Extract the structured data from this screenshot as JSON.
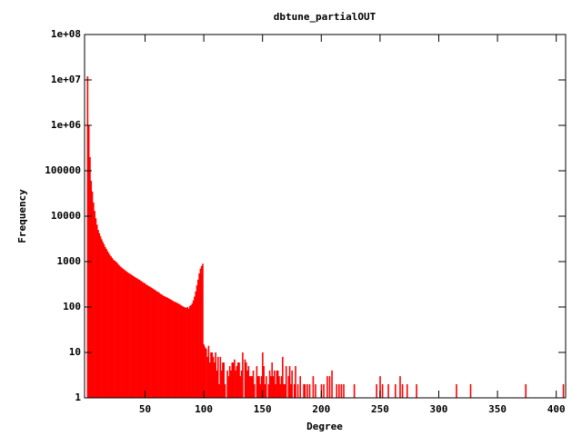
{
  "chart_data": {
    "type": "bar",
    "title": "dbtune_partialOUT",
    "x_label": "Degree",
    "y_label": "Frequency",
    "log_y": true,
    "color": "#ff0000",
    "xlim": [
      -1.5,
      408
    ],
    "xticks": [
      50,
      100,
      150,
      200,
      250,
      300,
      350,
      400
    ],
    "ylim": [
      1,
      100000000
    ],
    "yticks": [
      1,
      10,
      100,
      1000,
      10000,
      100000,
      {
        "value": 1000000,
        "label": "1e+06"
      },
      {
        "value": 10000000,
        "label": "1e+07"
      },
      {
        "value": 100000000,
        "label": "1e+08"
      }
    ],
    "x": [
      1,
      2,
      3,
      4,
      5,
      6,
      7,
      8,
      9,
      10,
      11,
      12,
      13,
      14,
      15,
      16,
      17,
      18,
      19,
      20,
      21,
      22,
      23,
      24,
      25,
      26,
      27,
      28,
      29,
      30,
      31,
      32,
      33,
      34,
      35,
      36,
      37,
      38,
      39,
      40,
      41,
      42,
      43,
      44,
      45,
      46,
      47,
      48,
      49,
      50,
      51,
      52,
      53,
      54,
      55,
      56,
      57,
      58,
      59,
      60,
      61,
      62,
      63,
      64,
      65,
      66,
      67,
      68,
      69,
      70,
      71,
      72,
      73,
      74,
      75,
      76,
      77,
      78,
      79,
      80,
      81,
      82,
      83,
      84,
      85,
      86,
      87,
      88,
      89,
      90,
      91,
      92,
      93,
      94,
      95,
      96,
      97,
      98,
      99,
      100,
      101,
      102,
      103,
      104,
      105,
      106,
      107,
      108,
      109,
      110,
      111,
      112,
      113,
      114,
      115,
      116,
      117,
      118,
      120,
      121,
      122,
      123,
      124,
      125,
      126,
      127,
      128,
      129,
      130,
      131,
      132,
      133,
      135,
      136,
      137,
      138,
      139,
      140,
      141,
      142,
      143,
      145,
      146,
      147,
      148,
      149,
      150,
      151,
      152,
      153,
      155,
      156,
      157,
      158,
      159,
      160,
      161,
      162,
      163,
      164,
      165,
      166,
      167,
      168,
      169,
      170,
      172,
      173,
      174,
      175,
      177,
      178,
      180,
      182,
      185,
      186,
      188,
      190,
      193,
      195,
      200,
      202,
      205,
      207,
      209,
      213,
      215,
      217,
      219,
      228,
      247,
      250,
      252,
      257,
      263,
      267,
      269,
      273,
      281,
      315,
      327,
      374,
      406
    ],
    "values": [
      12000000,
      1000000,
      200000,
      60000,
      35000,
      20000,
      13000,
      9000,
      6500,
      5000,
      4200,
      3600,
      3100,
      2700,
      2400,
      2100,
      1900,
      1700,
      1550,
      1400,
      1300,
      1200,
      1100,
      1050,
      1000,
      950,
      880,
      820,
      780,
      740,
      700,
      670,
      640,
      610,
      580,
      560,
      540,
      520,
      500,
      480,
      460,
      440,
      430,
      410,
      400,
      380,
      370,
      350,
      340,
      330,
      310,
      300,
      290,
      280,
      270,
      260,
      250,
      240,
      230,
      220,
      215,
      205,
      195,
      190,
      180,
      175,
      170,
      165,
      160,
      155,
      150,
      145,
      140,
      135,
      130,
      128,
      124,
      120,
      116,
      112,
      108,
      104,
      100,
      98,
      95,
      100,
      92,
      105,
      110,
      120,
      140,
      170,
      220,
      300,
      400,
      550,
      700,
      800,
      900,
      15,
      13,
      12,
      8,
      14,
      6,
      10,
      10,
      8,
      6,
      10,
      4,
      8,
      2,
      8,
      4,
      6,
      6,
      2,
      4,
      3,
      5,
      4,
      6,
      6,
      7,
      4,
      5,
      6,
      6,
      3,
      4,
      10,
      7,
      6,
      4,
      5,
      3,
      3,
      3,
      4,
      2,
      5,
      3,
      3,
      2,
      3,
      10,
      5,
      2,
      3,
      2,
      4,
      3,
      6,
      3,
      4,
      2,
      4,
      4,
      3,
      2,
      3,
      8,
      2,
      2,
      5,
      3,
      5,
      2,
      4,
      2,
      5,
      2,
      3,
      2,
      2,
      2,
      2,
      3,
      2,
      2,
      2,
      3,
      3,
      4,
      2,
      2,
      2,
      2,
      2,
      2,
      3,
      2,
      2,
      2,
      3,
      2,
      2,
      2,
      2,
      2,
      2,
      2
    ]
  }
}
